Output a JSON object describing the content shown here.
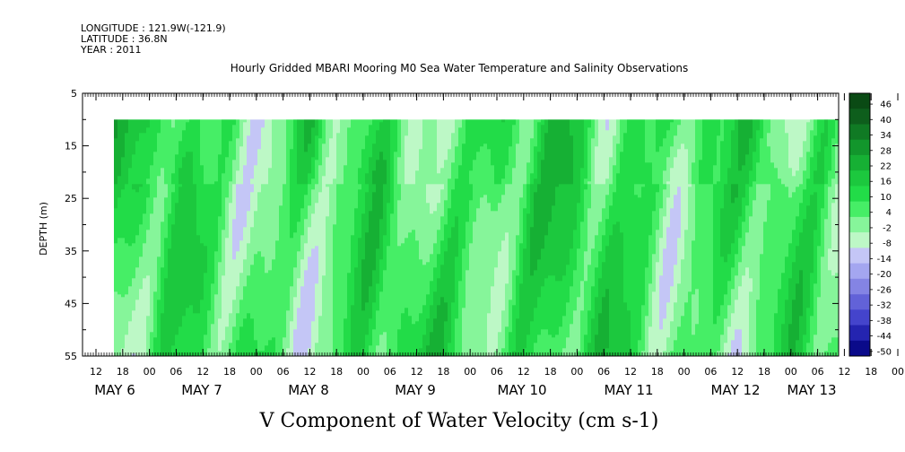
{
  "meta": {
    "longitude": "LONGITUDE : 121.9W(-121.9)",
    "latitude": "LATITUDE : 36.8N",
    "year": "YEAR : 2011"
  },
  "chart_data": {
    "type": "heatmap",
    "title": "Hourly Gridded MBARI Mooring M0 Sea Water Temperature and Salinity Observations",
    "xlabel": "V Component of Water Velocity (cm s-1)",
    "ylabel": "DEPTH (m)",
    "ylim": [
      5,
      55
    ],
    "y_inverted": true,
    "y_ticks": [
      5,
      15,
      25,
      35,
      45,
      55
    ],
    "hour_tick_labels": [
      "12",
      "18",
      "00",
      "06",
      "12",
      "18",
      "00",
      "06",
      "12",
      "18",
      "00",
      "06",
      "12",
      "18",
      "00",
      "06",
      "12",
      "18",
      "00",
      "06",
      "12",
      "18",
      "00",
      "06",
      "12",
      "18",
      "00",
      "06",
      "12",
      "18",
      "00",
      "06"
    ],
    "date_labels": [
      "MAY 6",
      "MAY 7",
      "MAY 8",
      "MAY 9",
      "MAY 10",
      "MAY 11",
      "MAY 12",
      "MAY 13"
    ],
    "colorbar": {
      "labels": [
        "46",
        "40",
        "34",
        "28",
        "22",
        "16",
        "10",
        "4",
        "-2",
        "-8",
        "-14",
        "-20",
        "-26",
        "-32",
        "-38",
        "-44",
        "-50"
      ],
      "colors": [
        "#0a4a14",
        "#0e5e1c",
        "#107a24",
        "#12962c",
        "#16b034",
        "#1cc83e",
        "#22dc48",
        "#46ee66",
        "#86f59a",
        "#bdf8c6",
        "#c4c6f6",
        "#a4a6f0",
        "#8484e4",
        "#6262d8",
        "#4444cc",
        "#2424b0",
        "#0a0a8a"
      ]
    },
    "data_extent": {
      "depth_top": 10,
      "depth_bottom": 55
    },
    "notes": "Heatmap of V velocity vs time and depth; mostly weak positive (green) values with bands of weak negative (blue/purple)."
  }
}
